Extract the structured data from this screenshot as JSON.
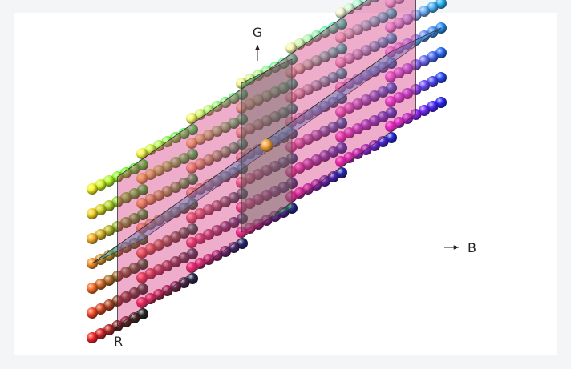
{
  "diagram": {
    "axis_labels": {
      "r": "R",
      "g": "G",
      "b": "B"
    },
    "grid_levels": 7,
    "colors": {
      "axis": "#222222",
      "plane_edge": "#333333",
      "background": "#ffffff",
      "border": "#f4f5f7"
    },
    "planes": [
      {
        "name": "green-plane",
        "color": "#1f8f4a",
        "opacity": 0.45
      },
      {
        "name": "cyan-plane",
        "color": "#1fa8d8",
        "opacity": 0.45
      },
      {
        "name": "magenta-plane",
        "color": "#d6287a",
        "opacity": 0.38
      }
    ],
    "highlight_sphere_color": "#f7a23a"
  }
}
